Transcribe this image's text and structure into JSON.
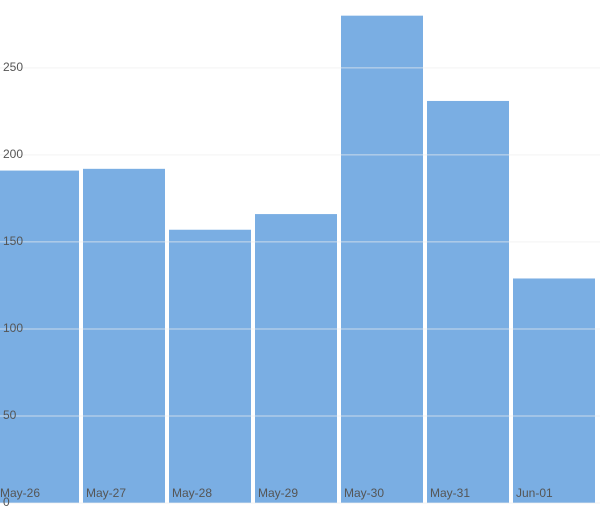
{
  "chart_data": {
    "type": "bar",
    "categories": [
      "May-26",
      "May-27",
      "May-28",
      "May-29",
      "May-30",
      "May-31",
      "Jun-01"
    ],
    "values": [
      191,
      192,
      157,
      166,
      280,
      231,
      129
    ],
    "color": "#7aaee3",
    "ylim": [
      0,
      289
    ],
    "yticks": [
      0,
      50,
      100,
      150,
      200,
      250
    ],
    "grid": true
  }
}
